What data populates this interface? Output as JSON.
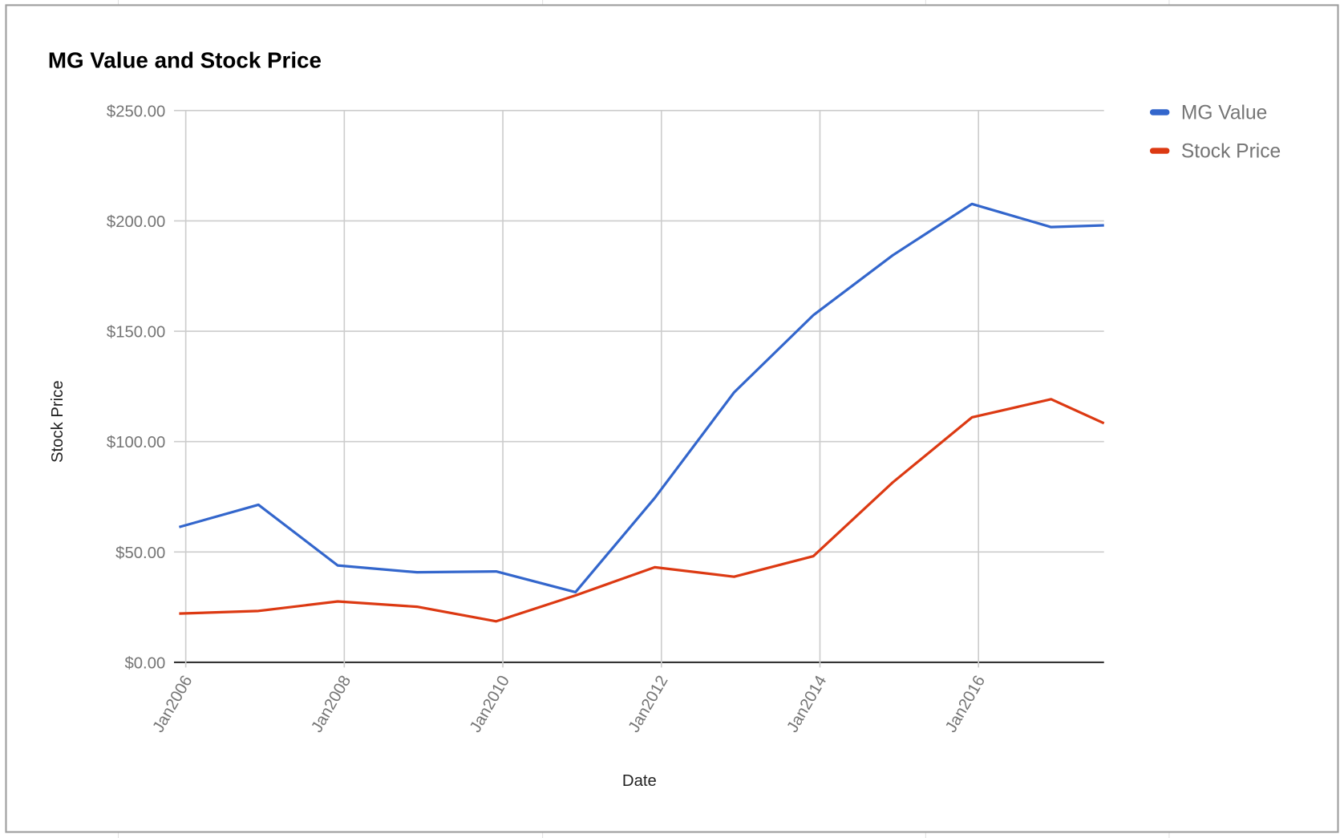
{
  "chart_data": {
    "type": "line",
    "title": "MG Value and Stock Price",
    "x_label": "Date",
    "y_label": "Stock Price",
    "x": [
      "2005-12",
      "2006-12",
      "2007-12",
      "2008-12",
      "2009-12",
      "2010-12",
      "2011-12",
      "2012-12",
      "2013-12",
      "2014-12",
      "2015-12",
      "2016-12",
      "2017-08"
    ],
    "series": [
      {
        "name": "MG Value",
        "color": "#3366cc",
        "values": [
          61.3,
          71.4,
          43.9,
          40.8,
          41.2,
          31.8,
          74.5,
          122.3,
          157.3,
          184.4,
          207.7,
          197.2,
          198.0
        ]
      },
      {
        "name": "Stock Price",
        "color": "#dc3912",
        "values": [
          22.1,
          23.3,
          27.6,
          25.2,
          18.6,
          30.3,
          43.1,
          38.8,
          48.1,
          81.5,
          111.0,
          119.2,
          108.3
        ]
      }
    ],
    "xlim": [
      "2005-12",
      "2017-08"
    ],
    "xticks": [
      {
        "value": "2006-01",
        "label": "Jan2006"
      },
      {
        "value": "2008-01",
        "label": "Jan2008"
      },
      {
        "value": "2010-01",
        "label": "Jan2010"
      },
      {
        "value": "2012-01",
        "label": "Jan2012"
      },
      {
        "value": "2014-01",
        "label": "Jan2014"
      },
      {
        "value": "2016-01",
        "label": "Jan2016"
      }
    ],
    "ylim": [
      0,
      250
    ],
    "yticks": [
      {
        "value": 0,
        "label": "$0.00"
      },
      {
        "value": 50,
        "label": "$50.00"
      },
      {
        "value": 100,
        "label": "$100.00"
      },
      {
        "value": 150,
        "label": "$150.00"
      },
      {
        "value": 200,
        "label": "$200.00"
      },
      {
        "value": 250,
        "label": "$250.00"
      }
    ],
    "grid": true,
    "legend": "right"
  }
}
